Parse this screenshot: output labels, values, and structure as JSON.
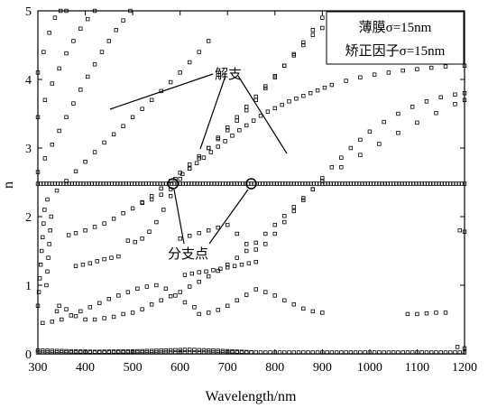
{
  "chart_data": {
    "type": "scatter",
    "xlabel": "Wavelength/nm",
    "ylabel": "n",
    "xlim": [
      300,
      1200
    ],
    "ylim": [
      0,
      5
    ],
    "xticks": [
      "300",
      "400",
      "500",
      "600",
      "700",
      "800",
      "900",
      "1000",
      "1100",
      "1200"
    ],
    "yticks": [
      "0",
      "1",
      "2",
      "3",
      "4",
      "5"
    ],
    "legend": [
      "薄膜σ=15nm",
      "矫正因子σ=15nm"
    ],
    "legend_position": "top-right",
    "annotations": {
      "branch_label": "解支",
      "bifurcation_label": "分支点",
      "bifurcation_points": [
        [
          585,
          2.48
        ],
        [
          750,
          2.48
        ]
      ]
    },
    "series": [
      {
        "x": [
          300,
          1200
        ],
        "y": [
          2.48,
          2.48
        ],
        "step": 6
      },
      {
        "x": [
          300,
          1200
        ],
        "y": [
          0.02,
          0.02
        ],
        "step": 10
      },
      {
        "x": [
          300,
          420,
          520,
          620,
          700,
          760
        ],
        "y": [
          0.05,
          0.03,
          0.04,
          0.06,
          0.04,
          0.02
        ],
        "step": 10
      },
      {
        "x": [
          340,
          345,
          360,
          380,
          400,
          420,
          440,
          460,
          480,
          500,
          520,
          540,
          560,
          580,
          600,
          620,
          640,
          660,
          680,
          700,
          720,
          740,
          760,
          780,
          800,
          820,
          840,
          860,
          880,
          900,
          940,
          980,
          1020,
          1060,
          1100,
          1140,
          1180,
          1200
        ],
        "y": [
          0.62,
          0.7,
          0.65,
          0.55,
          0.5,
          0.5,
          0.52,
          0.54,
          0.58,
          0.6,
          0.65,
          0.72,
          0.78,
          0.84,
          0.9,
          0.98,
          1.05,
          1.13,
          1.21,
          1.3,
          1.4,
          1.5,
          1.62,
          1.75,
          1.88,
          2.01,
          2.14,
          2.27,
          2.4,
          2.52,
          2.72,
          2.9,
          3.06,
          3.22,
          3.37,
          3.51,
          3.64,
          3.7
        ]
      },
      {
        "x": [
          365,
          380,
          400,
          420,
          440,
          460,
          480,
          500,
          520,
          540,
          560,
          580,
          600,
          620,
          640,
          660,
          680,
          700,
          720,
          740,
          760,
          780,
          800,
          820,
          840,
          860,
          880,
          900
        ],
        "y": [
          1.73,
          1.76,
          1.8,
          1.85,
          1.9,
          1.97,
          2.05,
          2.12,
          2.21,
          2.3,
          2.41,
          2.52,
          2.64,
          2.76,
          2.88,
          3.0,
          3.13,
          3.26,
          3.4,
          3.55,
          3.7,
          3.87,
          4.03,
          4.2,
          4.37,
          4.54,
          4.72,
          4.9
        ]
      },
      {
        "x": [
          320,
          340,
          360,
          380,
          400,
          420,
          440,
          460,
          480,
          500,
          520,
          540,
          560,
          580,
          600,
          620,
          640,
          660
        ],
        "y": [
          2.25,
          2.38,
          2.52,
          2.66,
          2.8,
          2.94,
          3.08,
          3.2,
          3.32,
          3.45,
          3.57,
          3.7,
          3.83,
          3.96,
          4.1,
          4.25,
          4.4,
          4.56
        ]
      },
      {
        "x": [
          300,
          315,
          330,
          345,
          360,
          375,
          390,
          405,
          420,
          435,
          450,
          465,
          480,
          495
        ],
        "y": [
          2.65,
          2.85,
          3.05,
          3.25,
          3.45,
          3.65,
          3.85,
          4.04,
          4.22,
          4.4,
          4.56,
          4.72,
          4.86,
          5.0
        ]
      },
      {
        "x": [
          300,
          315,
          330,
          345,
          360,
          375,
          390,
          405,
          420
        ],
        "y": [
          3.45,
          3.7,
          3.94,
          4.16,
          4.38,
          4.56,
          4.74,
          4.88,
          5.0
        ]
      },
      {
        "x": [
          300,
          312,
          324,
          336,
          348,
          360
        ],
        "y": [
          4.1,
          4.4,
          4.68,
          4.9,
          5.0,
          5.0
        ]
      },
      {
        "x": [
          590,
          605,
          620,
          635,
          650,
          665,
          680,
          695,
          710,
          725,
          740,
          755,
          770,
          785,
          800,
          815,
          830,
          845,
          860,
          875,
          890,
          905,
          920,
          950,
          980,
          1010,
          1040,
          1070,
          1100,
          1130,
          1160,
          1200
        ],
        "y": [
          2.55,
          2.62,
          2.7,
          2.78,
          2.86,
          2.94,
          3.02,
          3.1,
          3.18,
          3.26,
          3.33,
          3.4,
          3.47,
          3.53,
          3.58,
          3.63,
          3.68,
          3.72,
          3.76,
          3.8,
          3.84,
          3.88,
          3.92,
          3.98,
          4.03,
          4.07,
          4.1,
          4.13,
          4.15,
          4.17,
          4.19,
          4.2
        ]
      },
      {
        "x": [
          520,
          540,
          560,
          580,
          600,
          620,
          640,
          660,
          680,
          700,
          720,
          740,
          760,
          780,
          800,
          820,
          840,
          860,
          880,
          900
        ],
        "y": [
          2.2,
          2.25,
          2.32,
          2.4,
          2.55,
          2.7,
          2.85,
          3.0,
          3.15,
          3.3,
          3.45,
          3.6,
          3.75,
          3.9,
          4.05,
          4.2,
          4.35,
          4.5,
          4.65,
          4.75
        ]
      },
      {
        "x": [
          490,
          505,
          520,
          535,
          550,
          565,
          580
        ],
        "y": [
          1.65,
          1.63,
          1.68,
          1.78,
          1.92,
          2.1,
          2.3
        ]
      },
      {
        "x": [
          600,
          620,
          640,
          660,
          680,
          700,
          720,
          740,
          760,
          780,
          800,
          820,
          840,
          860,
          880,
          900,
          920,
          940,
          960,
          980,
          1000,
          1030,
          1060,
          1090,
          1120,
          1150,
          1180,
          1200
        ],
        "y": [
          1.68,
          1.72,
          1.76,
          1.8,
          1.84,
          1.88,
          1.75,
          1.6,
          1.52,
          1.6,
          1.75,
          1.92,
          2.08,
          2.24,
          2.4,
          2.56,
          2.72,
          2.86,
          3.0,
          3.12,
          3.24,
          3.38,
          3.5,
          3.6,
          3.68,
          3.74,
          3.78,
          3.8
        ]
      },
      {
        "x": [
          640,
          660,
          680,
          700,
          720,
          740,
          760,
          780,
          800,
          820,
          840,
          860,
          880,
          900
        ],
        "y": [
          0.58,
          0.6,
          0.64,
          0.7,
          0.78,
          0.86,
          0.94,
          0.9,
          0.85,
          0.78,
          0.72,
          0.66,
          0.62,
          0.6
        ]
      },
      {
        "x": [
          310,
          330,
          350,
          370,
          390,
          410,
          430,
          450,
          470,
          490,
          510,
          530,
          550,
          570,
          590,
          610,
          630
        ],
        "y": [
          0.45,
          0.47,
          0.5,
          0.56,
          0.62,
          0.68,
          0.74,
          0.8,
          0.85,
          0.9,
          0.95,
          0.98,
          1.0,
          0.95,
          0.85,
          0.75,
          0.68
        ]
      },
      {
        "x": [
          610,
          625,
          640,
          655,
          670,
          685,
          700,
          715,
          730,
          745,
          760
        ],
        "y": [
          1.15,
          1.17,
          1.19,
          1.2,
          1.22,
          1.24,
          1.26,
          1.28,
          1.3,
          1.32,
          1.34
        ]
      },
      {
        "x": [
          380,
          395,
          410,
          425,
          440,
          455,
          470
        ],
        "y": [
          1.28,
          1.3,
          1.32,
          1.35,
          1.38,
          1.4,
          1.42
        ]
      },
      {
        "x": [
          300,
          302,
          304,
          306,
          308,
          310,
          312,
          314
        ],
        "y": [
          0.7,
          0.9,
          1.1,
          1.3,
          1.5,
          1.7,
          1.9,
          2.1
        ]
      },
      {
        "x": [
          318,
          320,
          322,
          324,
          326,
          328
        ],
        "y": [
          1.0,
          1.2,
          1.4,
          1.6,
          1.8,
          2.0
        ]
      },
      {
        "x": [
          1080,
          1100,
          1120,
          1140,
          1160
        ],
        "y": [
          0.58,
          0.58,
          0.59,
          0.6,
          0.6
        ]
      },
      {
        "x": [
          1190,
          1200
        ],
        "y": [
          1.8,
          1.78
        ]
      },
      {
        "x": [
          1185,
          1200
        ],
        "y": [
          0.1,
          0.08
        ]
      }
    ]
  }
}
